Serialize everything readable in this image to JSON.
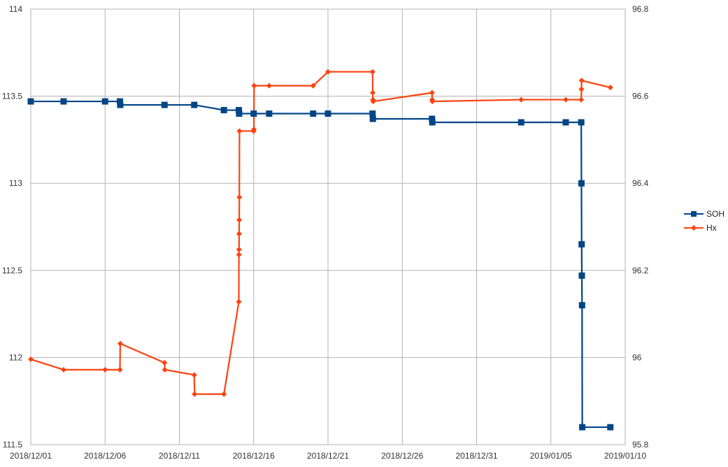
{
  "chart_data": {
    "type": "line",
    "title": "",
    "xlabel": "",
    "ylabel_left": "",
    "ylabel_right": "",
    "xlim": [
      "2018-12-01",
      "2019-01-10"
    ],
    "x_ticks": [
      "2018/12/01",
      "2018/12/06",
      "2018/12/11",
      "2018/12/16",
      "2018/12/21",
      "2018/12/26",
      "2018/12/31",
      "2019/01/05",
      "2019/01/10"
    ],
    "ylim_left": [
      111.5,
      114
    ],
    "y_ticks_left": [
      "111.5",
      "112",
      "112.5",
      "113",
      "113.5",
      "114"
    ],
    "ylim_right": [
      95.8,
      96.8
    ],
    "y_ticks_right": [
      "95.8",
      "96",
      "96.2",
      "96.4",
      "96.6",
      "96.8"
    ],
    "grid": true,
    "legend_position": "right",
    "series": [
      {
        "name": "SOH",
        "axis": "left",
        "color": "#004586",
        "marker": "square",
        "points": [
          [
            "2018-12-01 00:00",
            113.47
          ],
          [
            "2018-12-03 05:00",
            113.47
          ],
          [
            "2018-12-06 00:00",
            113.47
          ],
          [
            "2018-12-07 00:00",
            113.47
          ],
          [
            "2018-12-07 00:30",
            113.45
          ],
          [
            "2018-12-10 00:00",
            113.45
          ],
          [
            "2018-12-12 00:00",
            113.45
          ],
          [
            "2018-12-14 00:00",
            113.42
          ],
          [
            "2018-12-15 00:00",
            113.42
          ],
          [
            "2018-12-15 00:30",
            113.4
          ],
          [
            "2018-12-16 00:00",
            113.4
          ],
          [
            "2018-12-17 01:00",
            113.4
          ],
          [
            "2018-12-20 00:00",
            113.4
          ],
          [
            "2018-12-21 00:00",
            113.4
          ],
          [
            "2018-12-24 00:00",
            113.4
          ],
          [
            "2018-12-24 00:30",
            113.37
          ],
          [
            "2018-12-28 00:00",
            113.37
          ],
          [
            "2018-12-28 00:30",
            113.35
          ],
          [
            "2019-01-03 00:00",
            113.35
          ],
          [
            "2019-01-06 00:00",
            113.35
          ],
          [
            "2019-01-07 01:00",
            113.35
          ],
          [
            "2019-01-07 01:20",
            113.0
          ],
          [
            "2019-01-07 01:40",
            112.65
          ],
          [
            "2019-01-07 02:00",
            112.47
          ],
          [
            "2019-01-07 02:20",
            112.3
          ],
          [
            "2019-01-07 02:40",
            111.6
          ],
          [
            "2019-01-09 00:00",
            111.6
          ]
        ]
      },
      {
        "name": "Hx",
        "axis": "right",
        "color": "#ff420e",
        "marker": "diamond",
        "points": [
          [
            "2018-12-01 00:00",
            95.996
          ],
          [
            "2018-12-03 05:00",
            95.972
          ],
          [
            "2018-12-06 00:00",
            95.972
          ],
          [
            "2018-12-07 00:00",
            95.972
          ],
          [
            "2018-12-07 00:30",
            96.032
          ],
          [
            "2018-12-10 00:00",
            95.988
          ],
          [
            "2018-12-10 00:30",
            95.972
          ],
          [
            "2018-12-12 00:00",
            95.96
          ],
          [
            "2018-12-12 00:30",
            95.916
          ],
          [
            "2018-12-14 00:00",
            95.916
          ],
          [
            "2018-12-15 00:00",
            96.128
          ],
          [
            "2018-12-15 00:10",
            96.236
          ],
          [
            "2018-12-15 00:20",
            96.248
          ],
          [
            "2018-12-15 00:30",
            96.284
          ],
          [
            "2018-12-15 00:40",
            96.316
          ],
          [
            "2018-12-15 00:50",
            96.368
          ],
          [
            "2018-12-15 01:00",
            96.52
          ],
          [
            "2018-12-16 00:00",
            96.52
          ],
          [
            "2018-12-16 00:20",
            96.524
          ],
          [
            "2018-12-16 00:40",
            96.624
          ],
          [
            "2018-12-17 01:00",
            96.624
          ],
          [
            "2018-12-20 00:00",
            96.624
          ],
          [
            "2018-12-21 00:00",
            96.656
          ],
          [
            "2018-12-24 00:00",
            96.656
          ],
          [
            "2018-12-24 00:20",
            96.608
          ],
          [
            "2018-12-24 00:40",
            96.592
          ],
          [
            "2018-12-24 01:00",
            96.588
          ],
          [
            "2018-12-28 00:00",
            96.608
          ],
          [
            "2018-12-28 00:20",
            96.592
          ],
          [
            "2018-12-28 00:40",
            96.588
          ],
          [
            "2019-01-03 00:00",
            96.592
          ],
          [
            "2019-01-06 00:00",
            96.592
          ],
          [
            "2019-01-07 01:00",
            96.592
          ],
          [
            "2019-01-07 01:20",
            96.616
          ],
          [
            "2019-01-07 01:40",
            96.636
          ],
          [
            "2019-01-09 00:00",
            96.62
          ]
        ]
      }
    ]
  }
}
